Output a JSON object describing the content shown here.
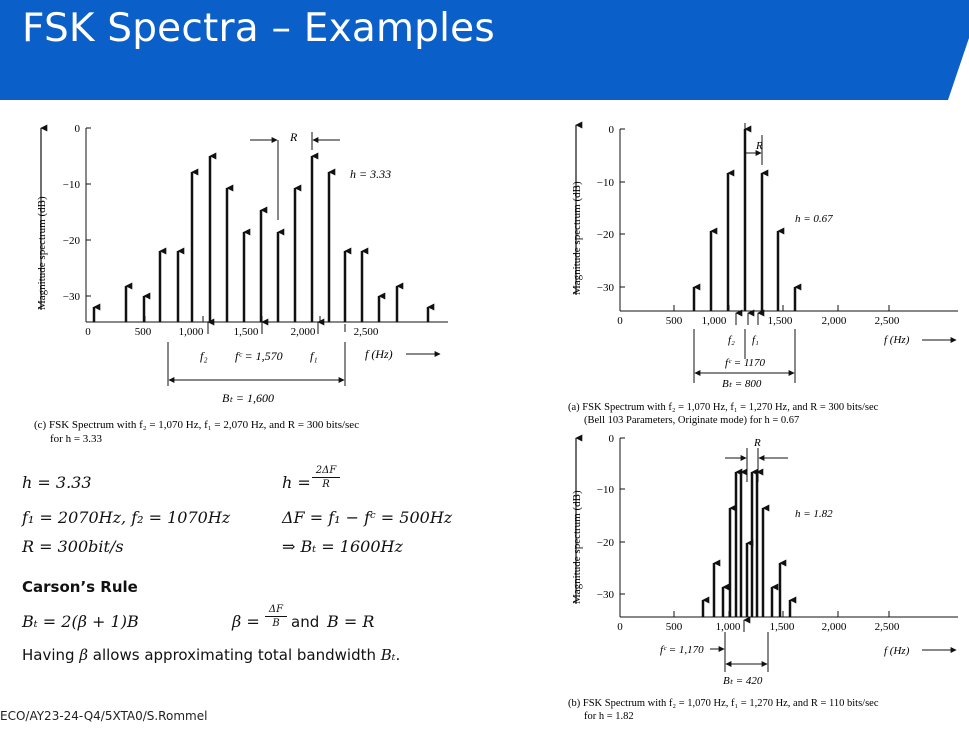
{
  "title": "FSK Spectra – Examples",
  "footer": "ECO/AY23-24-Q4/5XTA0/S.Rommel",
  "accent_color": "#0a5fc9",
  "left_figure": {
    "ylabel": "Magnitude spectrum (dB)",
    "y_ticks": [
      "0",
      "−10",
      "−20",
      "−30"
    ],
    "x_ticks": [
      "0",
      "500",
      "1,000",
      "1,500",
      "2,000",
      "2,500"
    ],
    "xunit": "f (Hz)",
    "annot_R": "R",
    "annot_h": "h = 3.33",
    "label_f2": "f₂",
    "label_fc": "fᶜ = 1,570",
    "label_f1": "f₁",
    "label_BT": "Bₜ = 1,600",
    "caption_line1": "(c) FSK Spectrum with f₂ = 1,070 Hz, f₁ = 2,070 Hz, and R = 300 bits/sec",
    "caption_line2": "for h = 3.33"
  },
  "right_top_figure": {
    "ylabel": "Magnitude spectrum (dB)",
    "y_ticks": [
      "0",
      "−10",
      "−20",
      "−30"
    ],
    "x_ticks": [
      "0",
      "500",
      "1,000",
      "1,500",
      "2,000",
      "2,500"
    ],
    "xunit": "f (Hz)",
    "annot_R": "R",
    "annot_h": "h = 0.67",
    "label_f2": "f₂",
    "label_f1": "f₁",
    "label_fc": "fᶜ = 1170",
    "label_BT": "Bₜ = 800",
    "caption_line1": "(a) FSK Spectrum with f₂ = 1,070 Hz, f₁ = 1,270 Hz, and R = 300 bits/sec",
    "caption_line2": "(Bell 103 Parameters, Originate mode) for h = 0.67"
  },
  "right_bottom_figure": {
    "ylabel": "Magnitude spectrum (dB)",
    "y_ticks": [
      "0",
      "−10",
      "−20",
      "−30"
    ],
    "x_ticks": [
      "0",
      "500",
      "1,000",
      "1,500",
      "2,000",
      "2,500"
    ],
    "xunit": "f (Hz)",
    "annot_R": "R",
    "annot_h": "h = 1.82",
    "label_fc": "fᶜ = 1,170",
    "label_BT": "Bₜ = 420",
    "caption_line1": "(b) FSK Spectrum with f₂ = 1,070 Hz, f₁ = 1,270 Hz, and R = 110 bits/sec",
    "caption_line2": "for h = 1.82"
  },
  "equations": {
    "h_value": "h = 3.33",
    "h_formula_lhs": "h =",
    "h_formula_num": "2ΔF",
    "h_formula_den": "R",
    "freqs": "f₁ = 2070Hz, f₂ = 1070Hz",
    "deltaF": "ΔF = f₁ − fᶜ = 500Hz",
    "R_value": "R = 300bit/s",
    "BT_result": "⇒ Bₜ = 1600Hz",
    "carson_heading": "Carson’s Rule",
    "carson_formula": "Bₜ = 2(β + 1)B",
    "beta_lhs": "β =",
    "beta_num": "ΔF",
    "beta_den": "B",
    "beta_and": "and",
    "beta_rhs": "B = R",
    "note_prefix": "Having",
    "note_beta": "β",
    "note_mid": "allows approximating total bandwidth",
    "note_BT": "Bₜ",
    "note_suffix": "."
  }
}
